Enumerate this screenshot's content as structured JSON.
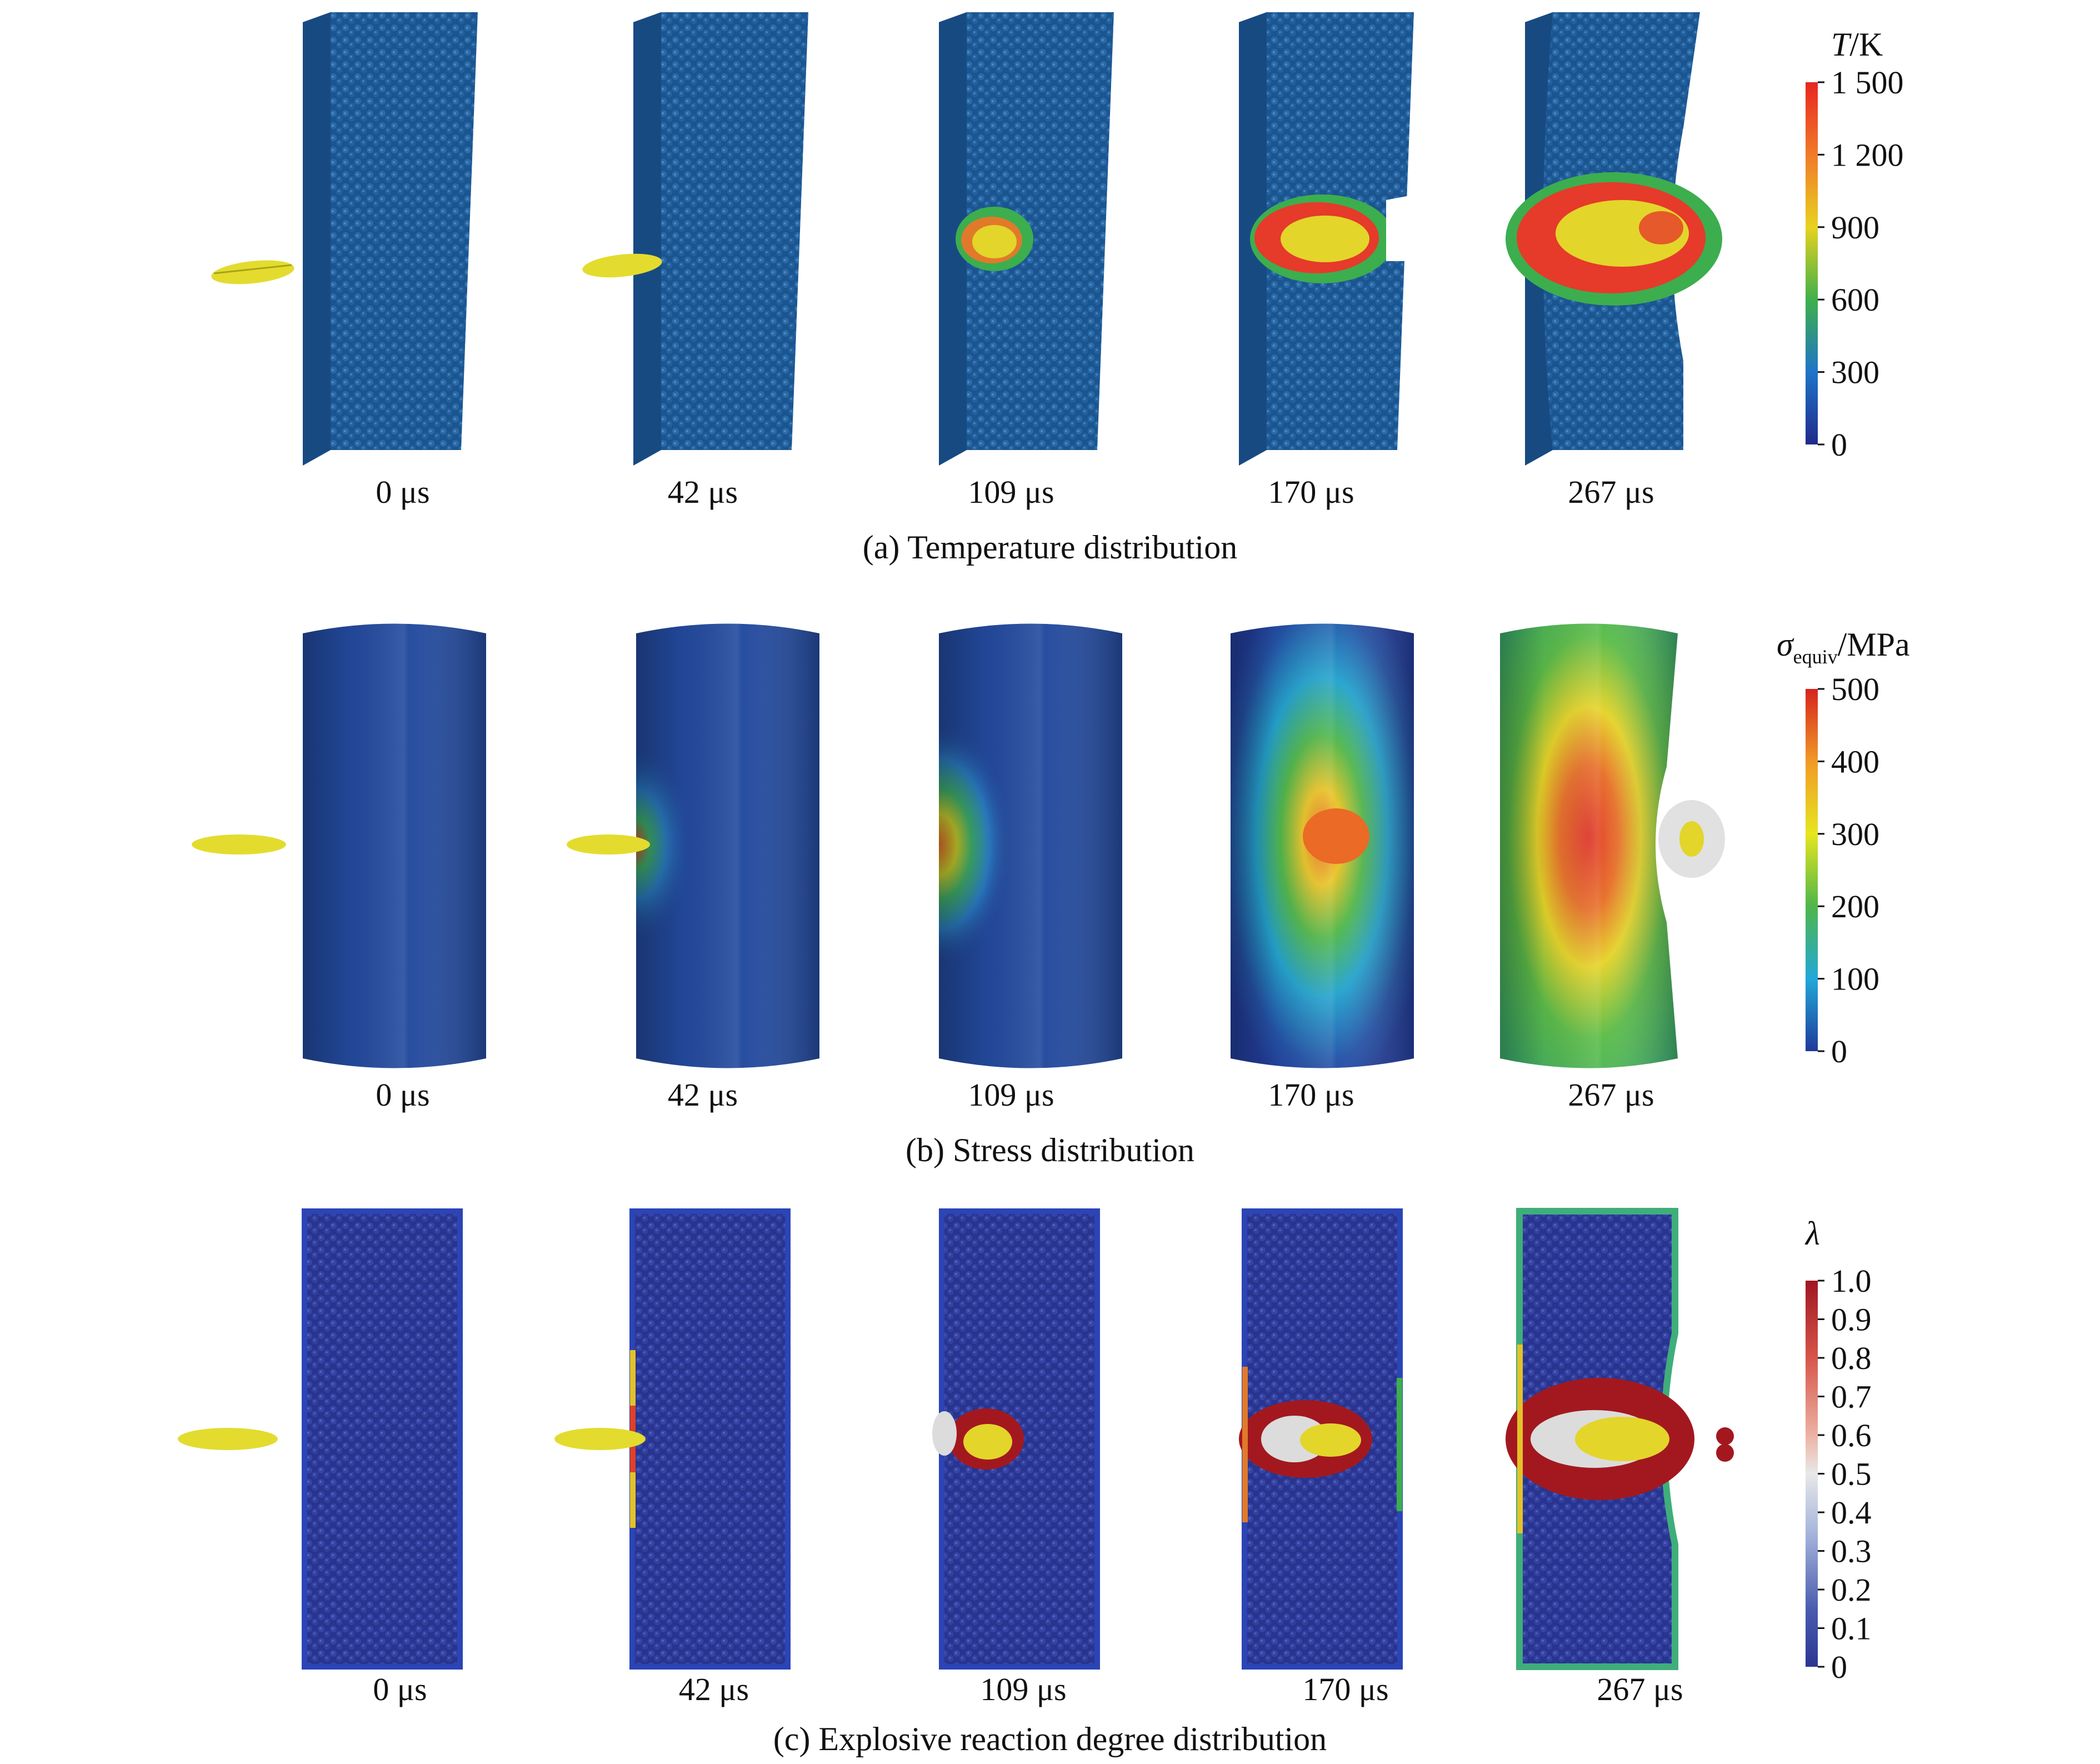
{
  "rows": [
    {
      "id": "a",
      "caption": "(a) Temperature distribution",
      "times": [
        "0 μs",
        "42 μs",
        "109 μs",
        "170 μs",
        "267 μs"
      ],
      "colorbar": {
        "symbol": "T",
        "unit": "/K",
        "ticks": [
          "1 500",
          "1 200",
          "900",
          "600",
          "300",
          "0"
        ],
        "colors": [
          "#e8261f",
          "#f07a2a",
          "#e8d21f",
          "#3fb04a",
          "#1f74c8",
          "#1f2a8c"
        ]
      },
      "colors": {
        "body": "#1c5a9a",
        "projectile": "#e3dc2e",
        "hot": "#e63a2a",
        "warm": "#d8c628",
        "medium": "#3cae4e"
      }
    },
    {
      "id": "b",
      "caption": "(b) Stress distribution",
      "times": [
        "0 μs",
        "42 μs",
        "109 μs",
        "170 μs",
        "267 μs"
      ],
      "colorbar": {
        "symbol": "σ",
        "subscript": "equiv",
        "unit": "/MPa",
        "ticks": [
          "500",
          "400",
          "300",
          "200",
          "100",
          "0"
        ],
        "colors": [
          "#d6231f",
          "#f09a26",
          "#e6e61f",
          "#4fb64a",
          "#21a8d8",
          "#203a9c"
        ]
      },
      "colors": {
        "body": "#234a9e",
        "high": "#e0402a",
        "mid": "#e6d12a",
        "low": "#3fae57"
      }
    },
    {
      "id": "c",
      "caption": "(c) Explosive reaction degree distribution",
      "times": [
        "0 μs",
        "42 μs",
        "109 μs",
        "170 μs",
        "267 μs"
      ],
      "colorbar": {
        "symbol": "λ",
        "unit": "",
        "ticks": [
          "1.0",
          "0.9",
          "0.8",
          "0.7",
          "0.6",
          "0.5",
          "0.4",
          "0.3",
          "0.2",
          "0.1",
          "0"
        ],
        "colors": [
          "#a01522",
          "#d6554a",
          "#ecb2a3",
          "#e8e8e8",
          "#a8b6dc",
          "#4a5cae",
          "#2c3593"
        ]
      },
      "colors": {
        "body": "#2c3a9e",
        "reacted": "#a3181f",
        "partial": "#dcdcdc",
        "projectile": "#e3dc2e"
      }
    }
  ]
}
